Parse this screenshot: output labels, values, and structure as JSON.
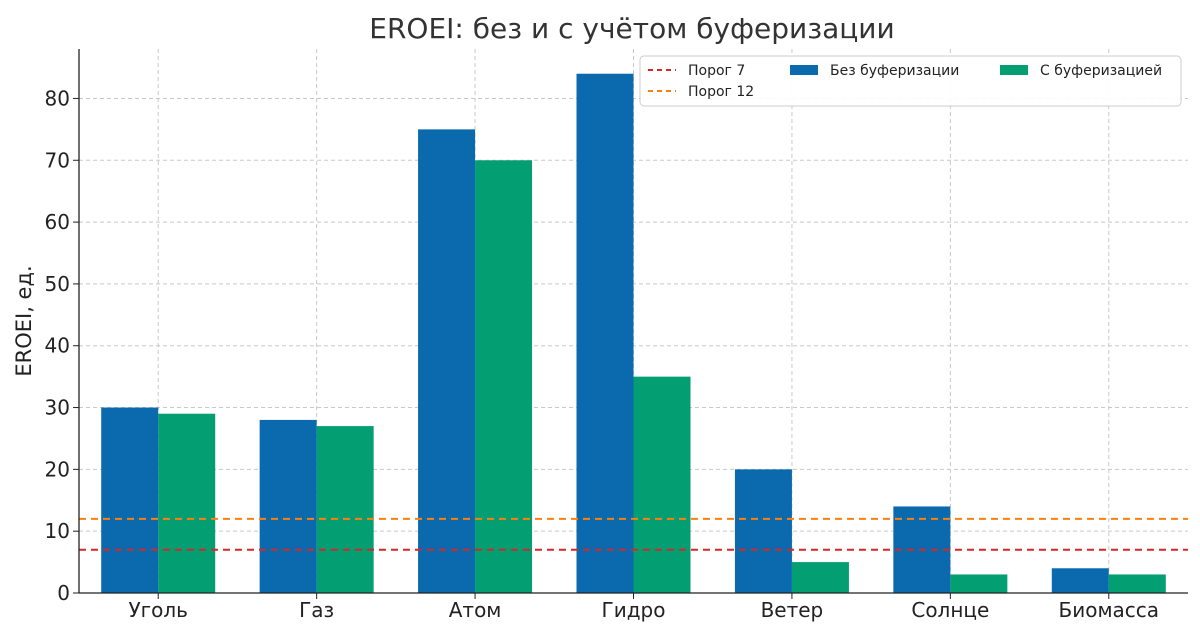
{
  "chart_data": {
    "type": "bar",
    "title": "EROEI: без и с учётом буферизации",
    "xlabel": "",
    "ylabel": "EROEI, ед.",
    "categories": [
      "Уголь",
      "Газ",
      "Атом",
      "Гидро",
      "Ветер",
      "Солнце",
      "Биомасса"
    ],
    "series": [
      {
        "name": "Без буферизации",
        "color": "#0a6aad",
        "values": [
          30,
          28,
          75,
          84,
          20,
          14,
          4
        ]
      },
      {
        "name": "С буферизацией",
        "color": "#039e72",
        "values": [
          29,
          27,
          70,
          35,
          5,
          3,
          3
        ]
      }
    ],
    "reference_lines": [
      {
        "name": "Порог 7",
        "value": 7,
        "color": "#d62728"
      },
      {
        "name": "Порог 12",
        "value": 12,
        "color": "#ff7f0e"
      }
    ],
    "ylim": [
      0,
      88
    ],
    "yticks": [
      0,
      10,
      20,
      30,
      40,
      50,
      60,
      70,
      80
    ],
    "grid": true,
    "legend_position": "top-right"
  }
}
